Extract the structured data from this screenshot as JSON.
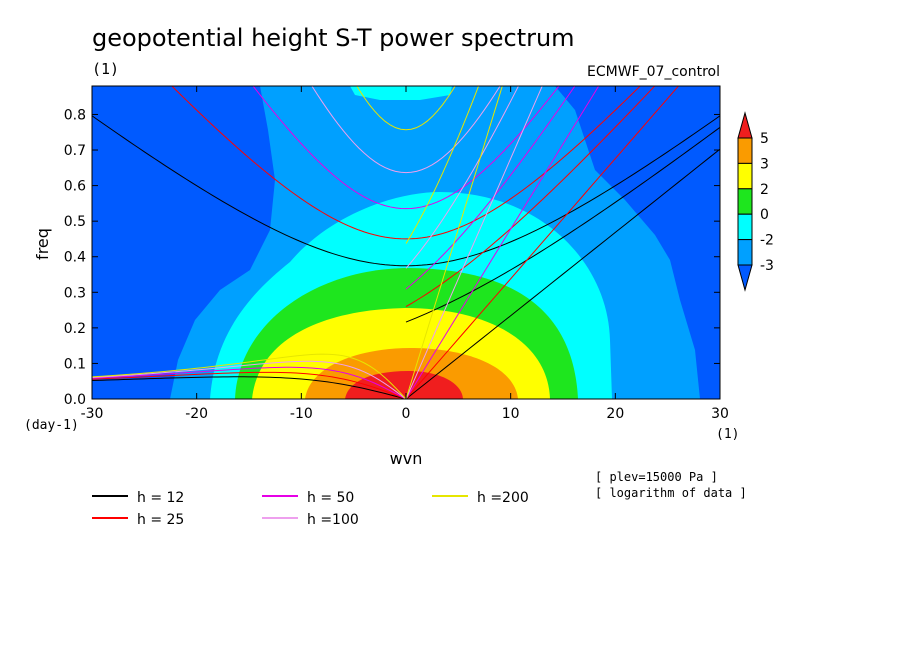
{
  "chart_data": {
    "type": "heatmap",
    "title": "geopotential height S-T power spectrum",
    "subtitle_left": "(1)",
    "subtitle_right": "ECMWF_07_control",
    "xlabel": "wvn",
    "ylabel": "freq",
    "x_unit": "(1)",
    "y_unit": "(day-1)",
    "xlim": [
      -30,
      30
    ],
    "ylim": [
      0,
      0.88
    ],
    "x_ticks": [
      "-30",
      "-20",
      "-10",
      "0",
      "10",
      "20",
      "30"
    ],
    "x_tick_values": [
      -30,
      -20,
      -10,
      0,
      10,
      20,
      30
    ],
    "y_ticks": [
      "0.0",
      "0.1",
      "0.2",
      "0.3",
      "0.4",
      "0.5",
      "0.6",
      "0.7",
      "0.8"
    ],
    "y_tick_values": [
      0,
      0.1,
      0.2,
      0.3,
      0.4,
      0.5,
      0.6,
      0.7,
      0.8
    ],
    "colorbar": {
      "levels": [
        "5",
        "3",
        "2",
        "0",
        "-2",
        "-3"
      ],
      "colors": [
        "#f01e1e",
        "#fa9b00",
        "#ffff00",
        "#1ee61e",
        "#00ffff",
        "#00a0ff",
        "#005aff"
      ]
    },
    "annotations": [
      "[ plev=15000 Pa ]",
      "[ logarithm of data ]"
    ],
    "dispersion_lines": [
      {
        "label": "h = 12",
        "equivalent_depth": 12,
        "color": "#000000"
      },
      {
        "label": "h = 25",
        "equivalent_depth": 25,
        "color": "#ff0000"
      },
      {
        "label": "h = 50",
        "equivalent_depth": 50,
        "color": "#e600e6"
      },
      {
        "label": "h =100",
        "equivalent_depth": 100,
        "color": "#eea0ee"
      },
      {
        "label": "h =200",
        "equivalent_depth": 200,
        "color": "#e6e600"
      }
    ]
  }
}
